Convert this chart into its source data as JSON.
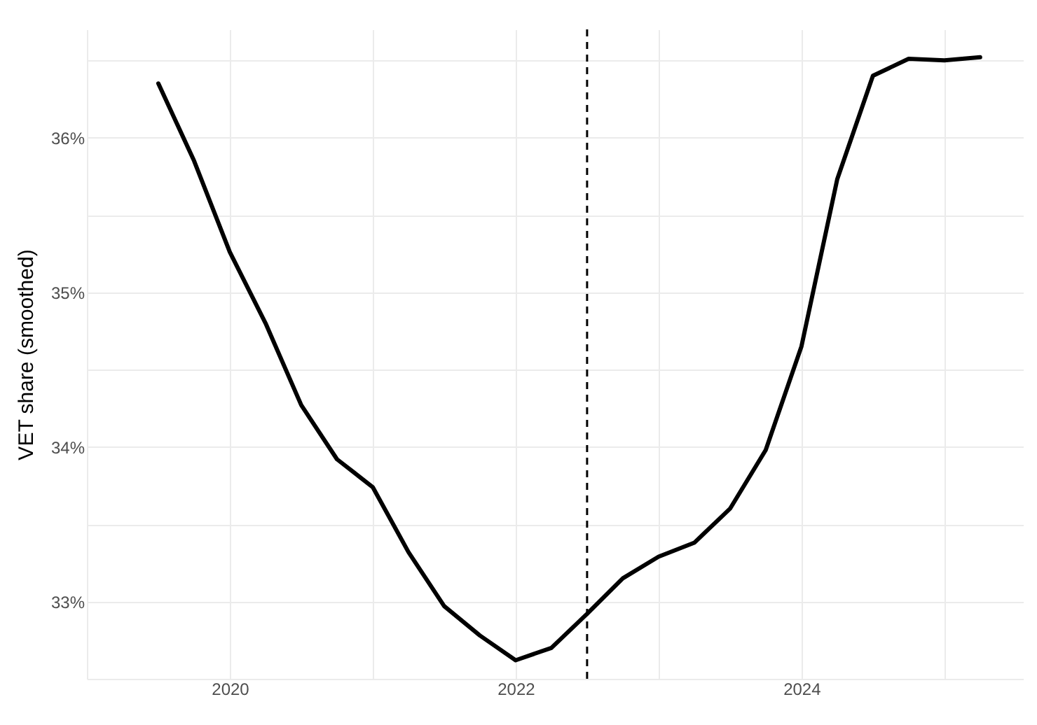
{
  "chart_data": {
    "type": "line",
    "ylabel": "VET share (smoothed)",
    "x": [
      2019.5,
      2019.75,
      2020.0,
      2020.25,
      2020.5,
      2020.75,
      2021.0,
      2021.25,
      2021.5,
      2021.75,
      2022.0,
      2022.25,
      2022.5,
      2022.75,
      2023.0,
      2023.25,
      2023.5,
      2023.75,
      2024.0,
      2024.25,
      2024.5,
      2024.75,
      2025.0,
      2025.25
    ],
    "series": [
      {
        "color": "#000000",
        "values": [
          36.35,
          35.85,
          35.26,
          34.8,
          34.27,
          33.92,
          33.74,
          33.32,
          32.97,
          32.78,
          32.62,
          32.7,
          32.92,
          33.15,
          33.29,
          33.38,
          33.6,
          33.98,
          34.65,
          35.73,
          36.4,
          36.51,
          36.5,
          36.52
        ]
      }
    ],
    "xlim": [
      2019,
      2025.55
    ],
    "ylim": [
      32.5,
      36.7
    ],
    "xticks": [
      {
        "value": 2019,
        "label": null
      },
      2020,
      {
        "value": 2021,
        "label": null
      },
      2022,
      {
        "value": 2023,
        "label": null
      },
      2024,
      {
        "value": 2025,
        "label": null
      }
    ],
    "yticks": [
      {
        "value": 32.5,
        "label": null
      },
      {
        "value": 33,
        "label": "33%"
      },
      {
        "value": 33.5,
        "label": null
      },
      {
        "value": 34,
        "label": "34%"
      },
      {
        "value": 34.5,
        "label": null
      },
      {
        "value": 35,
        "label": "35%"
      },
      {
        "value": 35.5,
        "label": null
      },
      {
        "value": 36,
        "label": "36%"
      },
      {
        "value": 36.5,
        "label": null
      }
    ],
    "ref_lines": [
      {
        "axis": "x",
        "value": 2022.5,
        "line_style": "dashed",
        "color": "#000000"
      }
    ],
    "grid": true,
    "line_style": "solid"
  }
}
